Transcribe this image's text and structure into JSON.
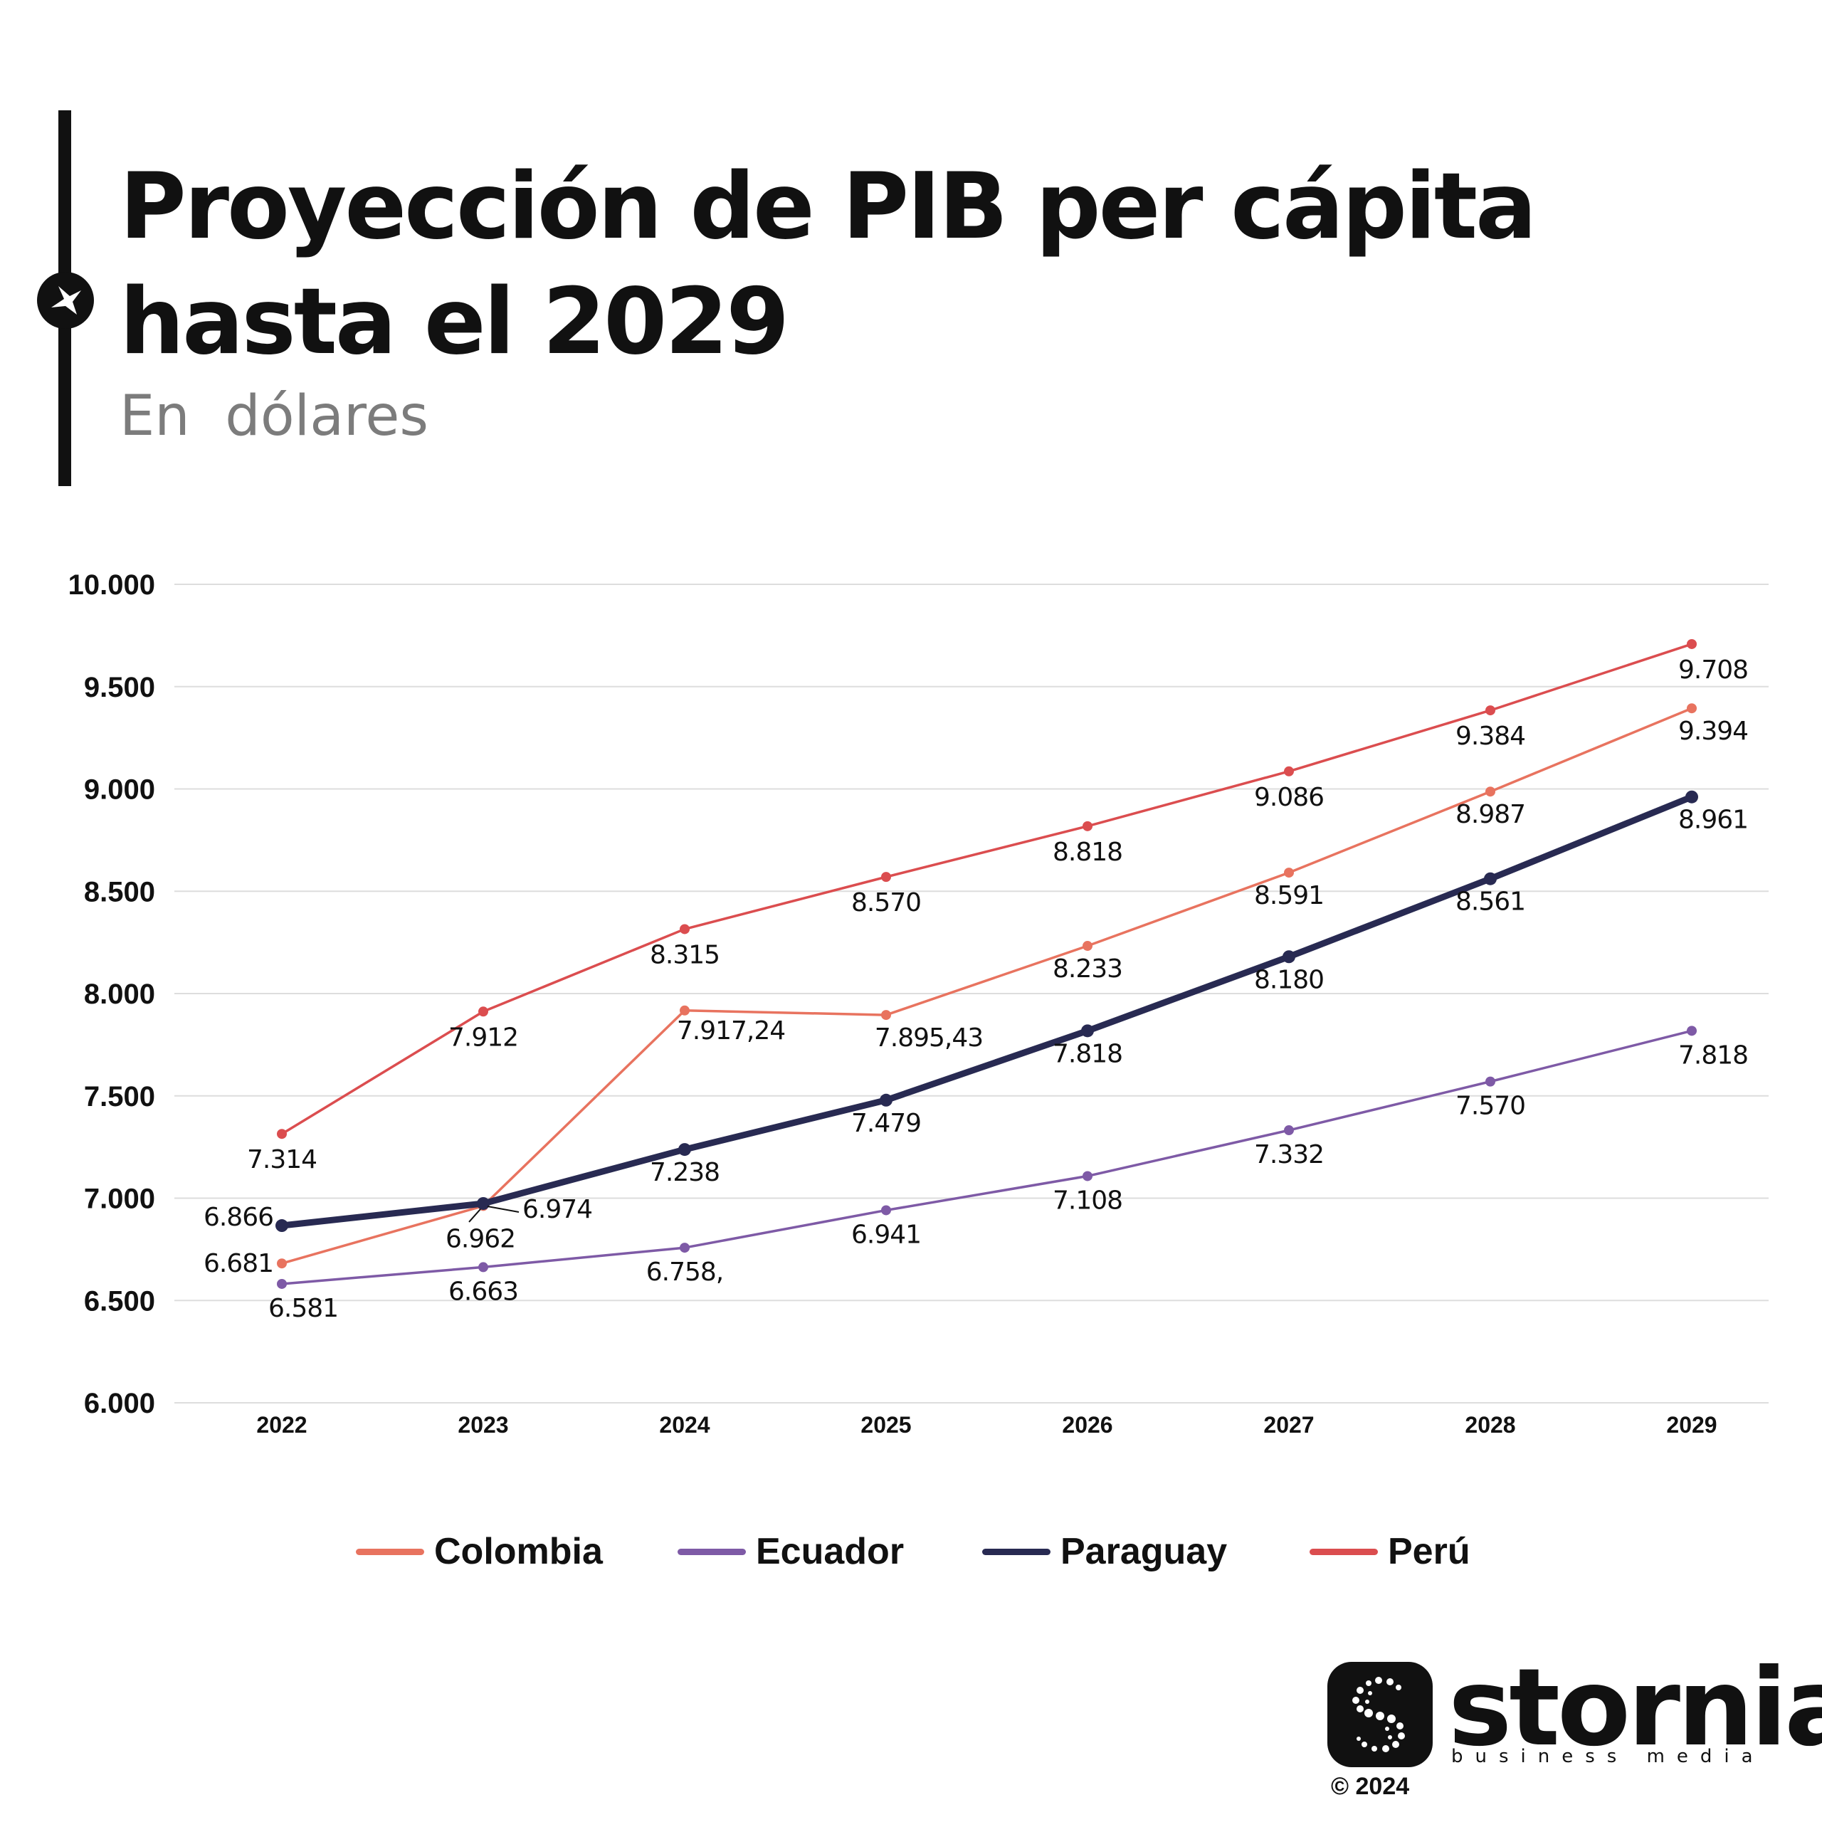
{
  "header": {
    "title_line1": "Proyección de PIB per cápita",
    "title_line2": "hasta el 2029",
    "subtitle": "En  dólares"
  },
  "brand": {
    "name": "stornia",
    "tagline": "business media",
    "copyright": "© 2024"
  },
  "colors": {
    "Colombia": "#e8735f",
    "Ecuador": "#7e5aa6",
    "Paraguay": "#282a52",
    "Perú": "#db4d4f",
    "grid": "#dddddd",
    "text": "#111111"
  },
  "chart_data": {
    "type": "line",
    "title": "Proyección de PIB per cápita hasta el 2029",
    "subtitle": "En  dólares",
    "xlabel": "",
    "ylabel": "",
    "x": [
      "2022",
      "2023",
      "2024",
      "2025",
      "2026",
      "2027",
      "2028",
      "2029"
    ],
    "ylim": [
      6000,
      10000
    ],
    "yticks": [
      {
        "value": 6000,
        "label": "6.000"
      },
      {
        "value": 6500,
        "label": "6.500"
      },
      {
        "value": 7000,
        "label": "7.000"
      },
      {
        "value": 7500,
        "label": "7.500"
      },
      {
        "value": 8000,
        "label": "8.000"
      },
      {
        "value": 8500,
        "label": "8.500"
      },
      {
        "value": 9000,
        "label": "9.000"
      },
      {
        "value": 9500,
        "label": "9.500"
      },
      {
        "value": 10000,
        "label": "10.000"
      }
    ],
    "grid": true,
    "legend_position": "bottom",
    "series": [
      {
        "name": "Colombia",
        "values": [
          6681,
          6962,
          7917.24,
          7895.43,
          8233,
          8591,
          8987,
          9394
        ],
        "labels": [
          "6.681",
          "6.962",
          "7.917,24",
          "7.895,43",
          "8.233",
          "8.591",
          "8.987",
          "9.394"
        ]
      },
      {
        "name": "Ecuador",
        "values": [
          6581,
          6663,
          6758,
          6941,
          7108,
          7332,
          7570,
          7818
        ],
        "labels": [
          "6.581",
          "6.663",
          "6.758,",
          "6.941",
          "7.108",
          "7.332",
          "7.570",
          "7.818"
        ]
      },
      {
        "name": "Paraguay",
        "values": [
          6866,
          6974,
          7238,
          7479,
          7818,
          8180,
          8561,
          8961
        ],
        "labels": [
          "6.866",
          "6.974",
          "7.238",
          "7.479",
          "7.818",
          "8.180",
          "8.561",
          "8.961"
        ]
      },
      {
        "name": "Perú",
        "values": [
          7314,
          7912,
          8315,
          8570,
          8818,
          9086,
          9384,
          9708
        ],
        "labels": [
          "7.314",
          "7.912",
          "8.315",
          "8.570",
          "8.818",
          "9.086",
          "9.384",
          "9.708"
        ]
      }
    ]
  }
}
